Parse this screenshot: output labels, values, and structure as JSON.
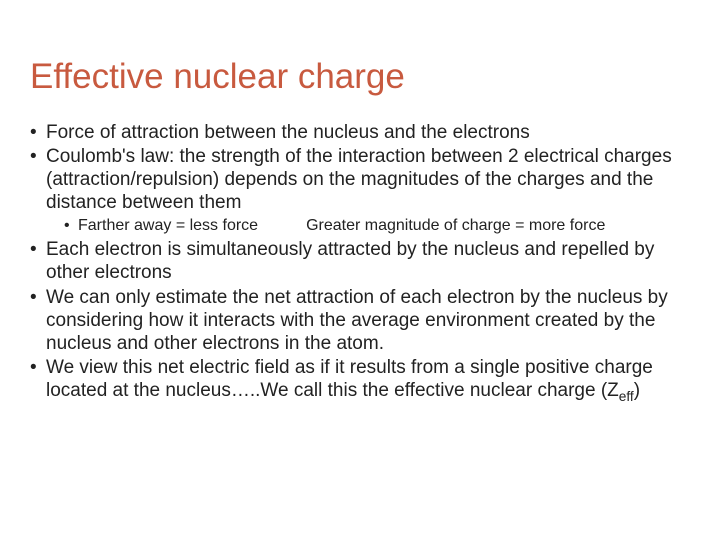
{
  "title": "Effective nuclear charge",
  "bullets": {
    "b1": "Force of attraction between the nucleus and the electrons",
    "b2": "Coulomb's law: the strength of the interaction between 2 electrical charges (attraction/repulsion) depends on the magnitudes of the charges and the distance between them",
    "b2_sub_a": "Farther away = less force",
    "b2_sub_b": "Greater magnitude of charge = more force",
    "b3": "Each electron is simultaneously attracted by the nucleus and repelled by other electrons",
    "b4": "We can only estimate the net attraction of each electron by the nucleus by considering how it interacts with the average environment created by the nucleus and other electrons in the atom.",
    "b5_pre": "We view this net electric field as if it results from a single positive charge located at the nucleus…..We call this the effective nuclear charge (Z",
    "b5_sub": "eff",
    "b5_post": ")"
  },
  "colors": {
    "title": "#c85a3f",
    "text": "#222222",
    "background": "#ffffff"
  },
  "fontsizes": {
    "title": 35,
    "level1": 19,
    "level2": 16
  }
}
